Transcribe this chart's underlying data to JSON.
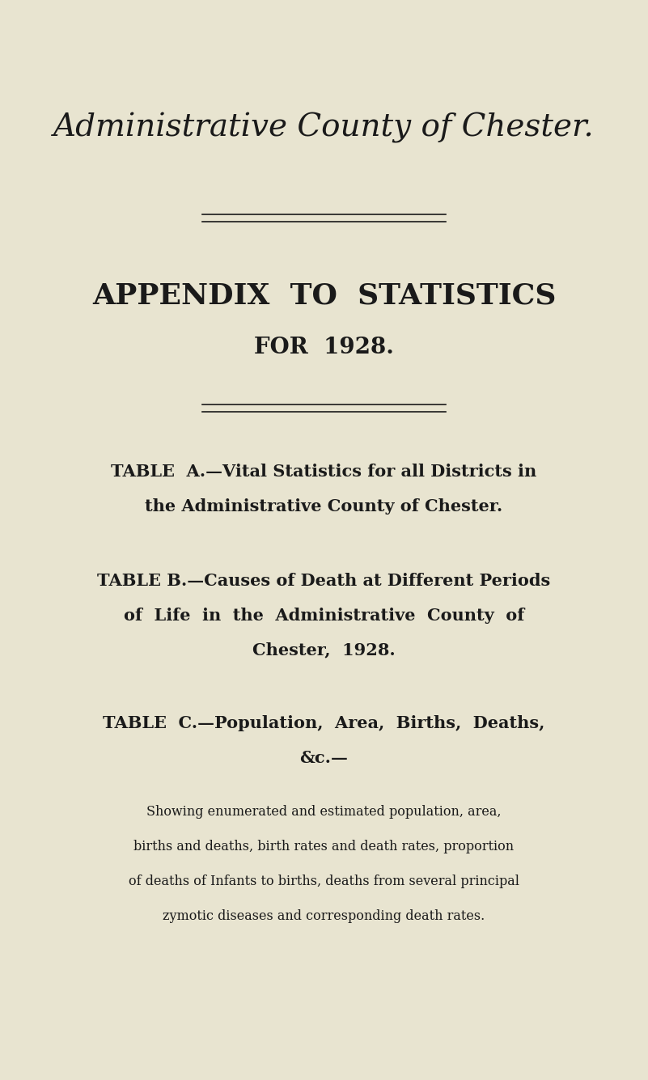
{
  "bg_color": "#e8e4d0",
  "text_color": "#1a1a1a",
  "main_title": "Administrative County of Chester.",
  "subtitle1": "APPENDIX  TO  STATISTICS",
  "subtitle2": "FOR  1928.",
  "table_a_line1": "TABLE  A.—Vital Statistics for all Districts in",
  "table_a_line2": "the Administrative County of Chester.",
  "table_b_line1": "TABLE B.—Causes of Death at Different Periods",
  "table_b_line2": "of  Life  in  the  Administrative  County  of",
  "table_b_line3": "Chester,  1928.",
  "table_c_line1": "TABLE  C.—Population,  Area,  Births,  Deaths,",
  "table_c_line2": "&c.—",
  "table_c_desc_line1": "Showing enumerated and estimated population, area,",
  "table_c_desc_line2": "births and deaths, birth rates and death rates, proportion",
  "table_c_desc_line3": "of deaths of Infants to births, deaths from several principal",
  "table_c_desc_line4": "zymotic diseases and corresponding death rates."
}
